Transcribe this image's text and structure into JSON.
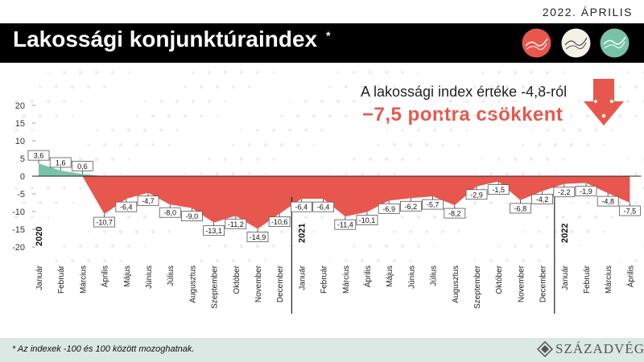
{
  "header": {
    "date": "2022. ÁPRILIS",
    "title": "Lakossági konjunktúraindex",
    "title_mark": "*",
    "icons": [
      "chart-circle-icon",
      "chart-circle-icon",
      "chart-circle-icon"
    ],
    "icon_colors": [
      "#e8574d",
      "#f4f1e6",
      "#78c3a7"
    ]
  },
  "headline": {
    "line1": "A lakossági index értéke -4,8-ról",
    "line2": "−7,5 pontra  csökkent",
    "arrow_icon": "down-arrow-icon",
    "accent_color": "#e8574d"
  },
  "footer": {
    "note": "* Az indexek -100 és 100 között mozoghatnak.",
    "brand": "SZÁZADVÉG"
  },
  "chart_data": {
    "type": "area",
    "yticks": [
      20,
      15,
      10,
      5,
      0,
      -5,
      -10,
      -15,
      -20
    ],
    "ylim": [
      -22,
      22
    ],
    "positive_color": "#78c3a7",
    "negative_color": "#e8574d",
    "years": [
      {
        "label": "2020",
        "start_index": 0
      },
      {
        "label": "2021",
        "start_index": 12
      },
      {
        "label": "2022",
        "start_index": 24
      }
    ],
    "x": [
      "Január",
      "Február",
      "Március",
      "Április",
      "Május",
      "Június",
      "Július",
      "Augusztus",
      "Szeptember",
      "Október",
      "November",
      "December",
      "Január",
      "Február",
      "Március",
      "Április",
      "Május",
      "Június",
      "Július",
      "Augusztus",
      "Szeptember",
      "Október",
      "November",
      "December",
      "Január",
      "Február",
      "Március",
      "Április"
    ],
    "values": [
      3.6,
      1.6,
      0.6,
      -10.7,
      -6.4,
      -4.7,
      -8.0,
      -9.0,
      -13.1,
      -11.2,
      -14.9,
      -10.6,
      -6.4,
      -6.4,
      -11.4,
      -10.1,
      -6.9,
      -6.2,
      -5.7,
      -8.2,
      -2.9,
      -1.5,
      -6.8,
      -4.2,
      -2.2,
      -1.9,
      -4.8,
      -7.5
    ],
    "labels": [
      "3,6",
      "1,6",
      "0,6",
      "-10,7",
      "-6,4",
      "-4,7",
      "-8,0",
      "-9,0",
      "-13,1",
      "-11,2",
      "-14,9",
      "-10,6",
      "-6,4",
      "-6,4",
      "-11,4",
      "-10,1",
      "-6,9",
      "-6,2",
      "-5,7",
      "-8,2",
      "-2,9",
      "-1,5",
      "-6,8",
      "-4,2",
      "-2,2",
      "-1,9",
      "-4,8",
      "-7,5"
    ]
  }
}
